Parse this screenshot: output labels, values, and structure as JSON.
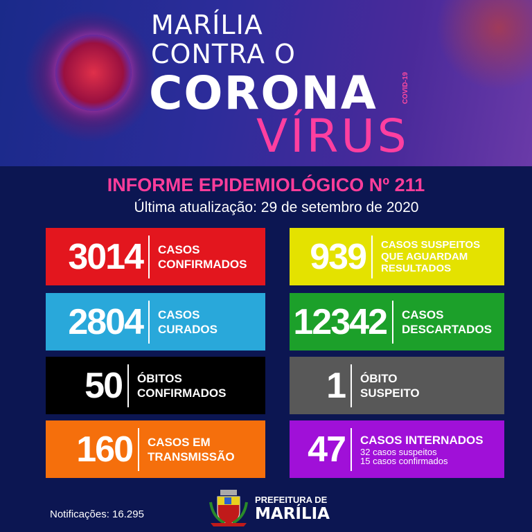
{
  "banner": {
    "line1": "MARÍLIA",
    "line2": "CONTRA O",
    "line3": "CORONA",
    "line4": "VÍRUS",
    "tag": "COVID-19"
  },
  "title": "INFORME EPIDEMIOLÓGICO Nº 211",
  "updated": "Última atualização: 29 de setembro de 2020",
  "cards": [
    {
      "value": "3014",
      "label": [
        "CASOS",
        "CONFIRMADOS"
      ],
      "color": "#e3161e"
    },
    {
      "value": "939",
      "label": [
        "CASOS SUSPEITOS",
        "QUE AGUARDAM",
        "RESULTADOS"
      ],
      "color": "#e4e200"
    },
    {
      "value": "2804",
      "label": [
        "CASOS",
        "CURADOS"
      ],
      "color": "#29a8da"
    },
    {
      "value": "12342",
      "label": [
        "CASOS",
        "DESCARTADOS"
      ],
      "color": "#1ca02a"
    },
    {
      "value": "50",
      "label": [
        "ÓBITOS",
        "CONFIRMADOS"
      ],
      "color": "#000000"
    },
    {
      "value": "1",
      "label": [
        "ÓBITO",
        "SUSPEITO"
      ],
      "color": "#585858"
    },
    {
      "value": "160",
      "label": [
        "CASOS EM",
        "TRANSMISSÃO"
      ],
      "color": "#f56f0c"
    },
    {
      "value": "47",
      "label": [
        "CASOS INTERNADOS",
        "32 casos suspeitos",
        "15 casos confirmados"
      ],
      "color": "#a010d8"
    }
  ],
  "footer": {
    "notifications": "Notificações: 16.295",
    "logo_line1": "PREFEITURA DE",
    "logo_line2": "MARÍLIA"
  }
}
